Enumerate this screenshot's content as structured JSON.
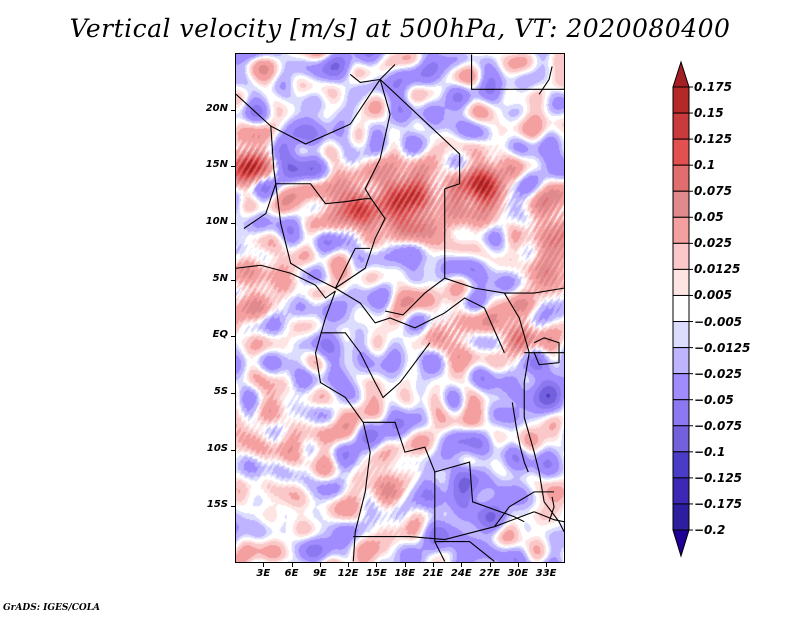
{
  "title": "Vertical velocity [m/s] at 500hPa, VT: 2020080400",
  "footer": "GrADS: IGES/COLA",
  "map": {
    "projection": "lat-lon",
    "variable": "Vertical velocity",
    "units": "m/s",
    "level": "500hPa",
    "valid_time": "2020080400",
    "lon_range": [
      0,
      35
    ],
    "lat_range": [
      -20,
      25
    ],
    "lat_ticks": [
      {
        "value": 20,
        "label": "20N"
      },
      {
        "value": 15,
        "label": "15N"
      },
      {
        "value": 10,
        "label": "10N"
      },
      {
        "value": 5,
        "label": "5N"
      },
      {
        "value": 0,
        "label": "EQ"
      },
      {
        "value": -5,
        "label": "5S"
      },
      {
        "value": -10,
        "label": "10S"
      },
      {
        "value": -15,
        "label": "15S"
      }
    ],
    "lon_ticks": [
      {
        "value": 3,
        "label": "3E"
      },
      {
        "value": 6,
        "label": "6E"
      },
      {
        "value": 9,
        "label": "9E"
      },
      {
        "value": 12,
        "label": "12E"
      },
      {
        "value": 15,
        "label": "15E"
      },
      {
        "value": 18,
        "label": "18E"
      },
      {
        "value": 21,
        "label": "21E"
      },
      {
        "value": 24,
        "label": "24E"
      },
      {
        "value": 27,
        "label": "27E"
      },
      {
        "value": 30,
        "label": "30E"
      },
      {
        "value": 33,
        "label": "33E"
      }
    ]
  },
  "colorbar": {
    "labels": [
      "0.175",
      "0.15",
      "0.125",
      "0.1",
      "0.075",
      "0.05",
      "0.025",
      "0.0125",
      "0.005",
      "−0.005",
      "−0.0125",
      "−0.025",
      "−0.05",
      "−0.075",
      "−0.1",
      "−0.125",
      "−0.175",
      "−0.2"
    ],
    "levels": [
      0.175,
      0.15,
      0.125,
      0.1,
      0.075,
      0.05,
      0.025,
      0.0125,
      0.005,
      -0.005,
      -0.0125,
      -0.025,
      -0.05,
      -0.075,
      -0.1,
      -0.125,
      -0.175,
      -0.2
    ],
    "top_arrow_color": "#a51e23",
    "colors": [
      "#b42828",
      "#c83a3c",
      "#e25050",
      "#e06e6e",
      "#e08a8e",
      "#f5a0a0",
      "#fac8c8",
      "#ffe4e4",
      "#ffffff",
      "#dcdcff",
      "#beb4ff",
      "#a08cff",
      "#8c78f0",
      "#7360dc",
      "#4b3cc8",
      "#3c28b4",
      "#2d1ea0"
    ],
    "bottom_arrow_color": "#1e0096"
  }
}
